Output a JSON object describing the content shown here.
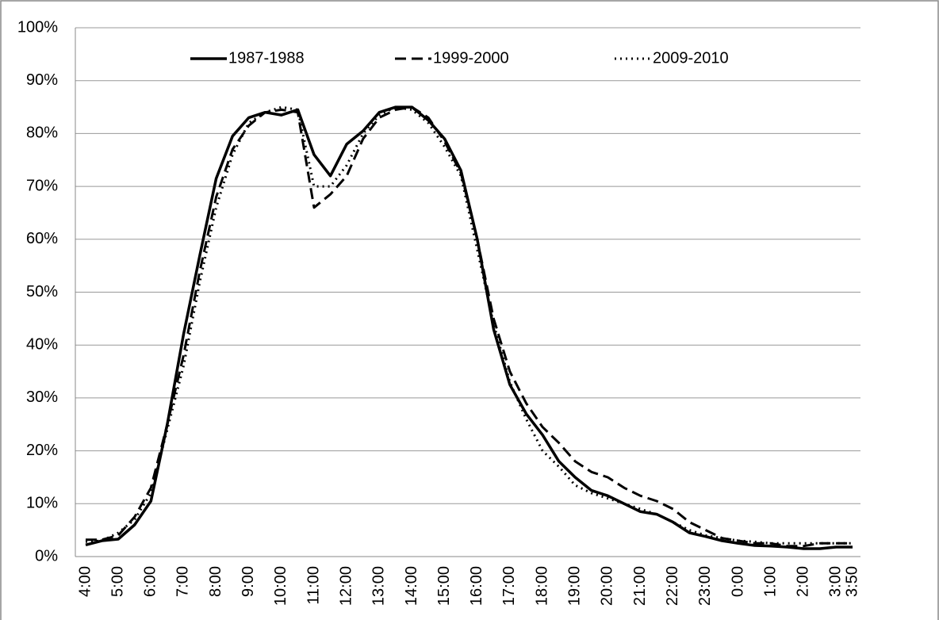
{
  "chart_data": {
    "type": "line",
    "categories": [
      "4:00",
      null,
      "5:00",
      null,
      "6:00",
      null,
      "7:00",
      null,
      "8:00",
      null,
      "9:00",
      null,
      "10:00",
      null,
      "11:00",
      null,
      "12:00",
      null,
      "13:00",
      null,
      "14:00",
      null,
      "15:00",
      null,
      "16:00",
      null,
      "17:00",
      null,
      "18:00",
      null,
      "19:00",
      null,
      "20:00",
      null,
      "21:00",
      null,
      "22:00",
      null,
      "23:00",
      null,
      "0:00",
      null,
      "1:00",
      null,
      "2:00",
      null,
      "3:00",
      "3:50"
    ],
    "series": [
      {
        "name": "1987-1988",
        "color": "#000000",
        "dash": "solid",
        "values": [
          2.2,
          3,
          3.3,
          6,
          10.5,
          25,
          42,
          57,
          71.5,
          79.5,
          83,
          84,
          83.5,
          84.5,
          76,
          72,
          78,
          80.5,
          84,
          85,
          85,
          82.5,
          79,
          73,
          60,
          43,
          32.5,
          27,
          23,
          18,
          15,
          12.5,
          11.5,
          10,
          8.5,
          8,
          6.5,
          4.5,
          3.8,
          3,
          2.5,
          2.1,
          2,
          1.8,
          1.5,
          1.5,
          1.8,
          1.8
        ]
      },
      {
        "name": "1999-2000",
        "color": "#000000",
        "dash": "dashed",
        "values": [
          3.2,
          3.2,
          4,
          7.5,
          13,
          25,
          38,
          54,
          68,
          77,
          81.5,
          84,
          84.5,
          84,
          66,
          68.5,
          72,
          79,
          83,
          84.5,
          85,
          83,
          78.5,
          72.5,
          60,
          45,
          35,
          29,
          24.5,
          21.5,
          18,
          16,
          15,
          13,
          11.5,
          10.5,
          9,
          6.5,
          5,
          3.5,
          3,
          2.5,
          2.5,
          2,
          2,
          2.5,
          2.5,
          2.5
        ]
      },
      {
        "name": "2009-2010",
        "color": "#000000",
        "dash": "dotted",
        "values": [
          2.8,
          3,
          4.5,
          7,
          12,
          24,
          36,
          52,
          66,
          76,
          82,
          84,
          85,
          84.5,
          70,
          70,
          74,
          80,
          83.5,
          85,
          84.5,
          82,
          77.5,
          72,
          58,
          44,
          33,
          26,
          20,
          17,
          13.5,
          12,
          11,
          10,
          9,
          8,
          6.5,
          5,
          4,
          3.5,
          3,
          2.8,
          2.5,
          2.5,
          2.5,
          2.5,
          2.5,
          2.5
        ]
      }
    ],
    "ylim": [
      0,
      100
    ],
    "yticks": [
      {
        "value": 0,
        "label": "0%"
      },
      {
        "value": 10,
        "label": "10%"
      },
      {
        "value": 20,
        "label": "20%"
      },
      {
        "value": 30,
        "label": "30%"
      },
      {
        "value": 40,
        "label": "40%"
      },
      {
        "value": 50,
        "label": "50%"
      },
      {
        "value": 60,
        "label": "60%"
      },
      {
        "value": 70,
        "label": "70%"
      },
      {
        "value": 80,
        "label": "80%"
      },
      {
        "value": 90,
        "label": "90%"
      },
      {
        "value": 100,
        "label": "100%"
      }
    ],
    "grid": true,
    "legend": "top"
  }
}
